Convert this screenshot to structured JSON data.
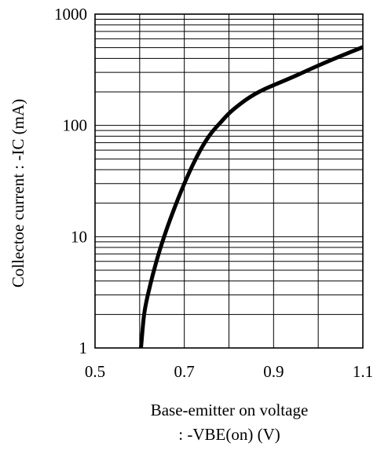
{
  "chart_data": {
    "type": "line",
    "xlabel_lines": [
      "Base-emitter on voltage",
      ": -VBE(on) (V)"
    ],
    "ylabel": "Collectoe current : -IC (mA)",
    "xlim": [
      0.5,
      1.1
    ],
    "ylim": [
      1,
      1000
    ],
    "yscale": "log",
    "grid": true,
    "x_ticks": [
      0.5,
      0.7,
      0.9,
      1.1
    ],
    "x_tick_labels": [
      "0.5",
      "0.7",
      "0.9",
      "1.1"
    ],
    "y_ticks": [
      1,
      10,
      100,
      1000
    ],
    "y_tick_labels": [
      "1",
      "10",
      "100",
      "1000"
    ],
    "series": [
      {
        "x": [
          0.603,
          0.61,
          0.62,
          0.64,
          0.66,
          0.68,
          0.7,
          0.72,
          0.74,
          0.76,
          0.78,
          0.8,
          0.82,
          0.84,
          0.86,
          0.88,
          0.9,
          0.95,
          1.0,
          1.05,
          1.1
        ],
        "y": [
          1,
          2.0,
          3.2,
          6.5,
          11.5,
          19,
          30,
          45,
          64,
          85,
          105,
          128,
          150,
          172,
          193,
          212,
          230,
          280,
          345,
          420,
          505
        ],
        "color": "#000000"
      }
    ]
  }
}
